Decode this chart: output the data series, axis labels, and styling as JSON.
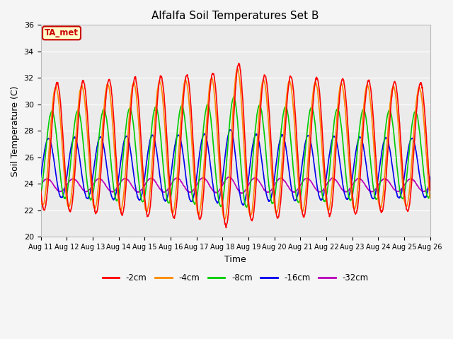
{
  "title": "Alfalfa Soil Temperatures Set B",
  "xlabel": "Time",
  "ylabel": "Soil Temperature (C)",
  "ylim": [
    20,
    36
  ],
  "background_color": "#ebebeb",
  "fig_facecolor": "#f5f5f5",
  "annotation_text": "TA_met",
  "annotation_facecolor": "#ffffcc",
  "annotation_edgecolor": "#cc0000",
  "annotation_textcolor": "#cc0000",
  "series": {
    "-2cm": {
      "color": "#ff0000",
      "linewidth": 1.2
    },
    "-4cm": {
      "color": "#ff8800",
      "linewidth": 1.2
    },
    "-8cm": {
      "color": "#00cc00",
      "linewidth": 1.2
    },
    "-16cm": {
      "color": "#0000ee",
      "linewidth": 1.2
    },
    "-32cm": {
      "color": "#bb00bb",
      "linewidth": 1.2
    }
  },
  "x_tick_labels": [
    "Aug 11",
    "Aug 12",
    "Aug 13",
    "Aug 14",
    "Aug 15",
    "Aug 16",
    "Aug 17",
    "Aug 18",
    "Aug 19",
    "Aug 20",
    "Aug 21",
    "Aug 22",
    "Aug 23",
    "Aug 24",
    "Aug 25",
    "Aug 26"
  ],
  "grid_color": "#ffffff",
  "grid_linewidth": 0.8,
  "n_points": 1440,
  "n_days": 15,
  "depths": {
    "-2cm": {
      "mean": 26.8,
      "amp": 5.6,
      "phase": 0.38,
      "noise": 0.05
    },
    "-4cm": {
      "mean": 26.8,
      "amp": 5.2,
      "phase": 0.33,
      "noise": 0.04
    },
    "-8cm": {
      "mean": 26.2,
      "amp": 3.8,
      "phase": 0.18,
      "noise": 0.03
    },
    "-16cm": {
      "mean": 25.2,
      "amp": 2.6,
      "phase": 0.05,
      "noise": 0.025
    },
    "-32cm": {
      "mean": 23.9,
      "amp": 0.55,
      "phase": 0.0,
      "noise": 0.015
    }
  }
}
